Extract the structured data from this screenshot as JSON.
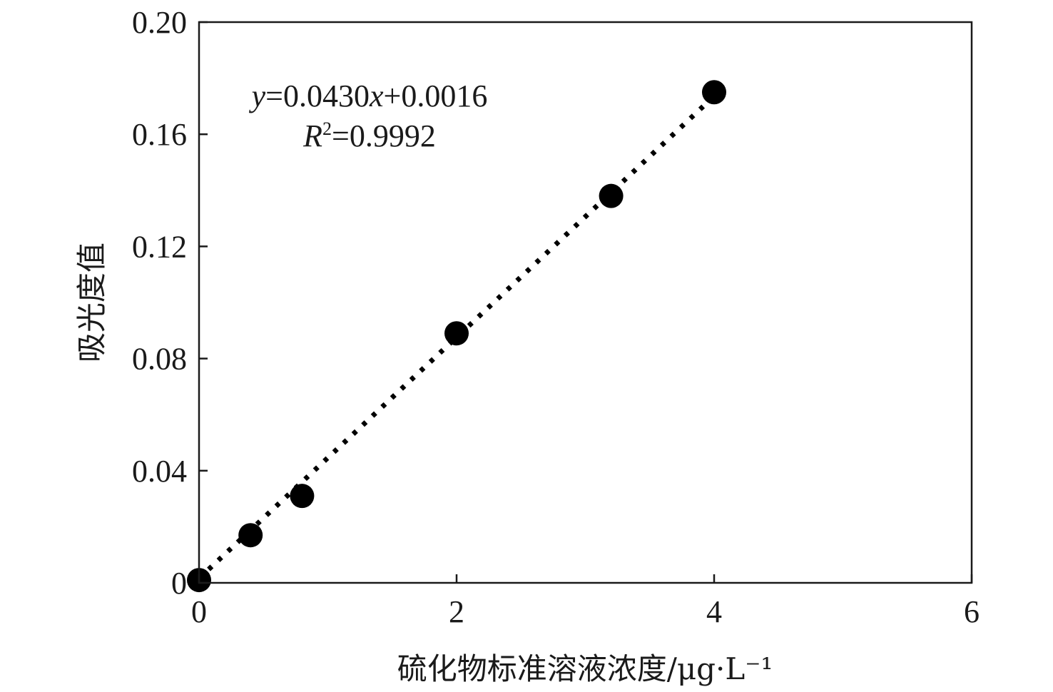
{
  "chart_data": {
    "type": "scatter",
    "title": "",
    "xlabel": "硫化物标准溶液浓度/μg·L⁻¹",
    "ylabel": "吸光度值",
    "xlim": [
      0,
      6
    ],
    "ylim": [
      0,
      0.2
    ],
    "x_ticks": [
      0,
      2,
      4,
      6
    ],
    "x_tick_labels": [
      "0",
      "2",
      "4",
      "6"
    ],
    "y_ticks": [
      0,
      0.04,
      0.08,
      0.12,
      0.16,
      0.2
    ],
    "y_tick_labels": [
      "0",
      "0.04",
      "0.08",
      "0.12",
      "0.16",
      "0.20"
    ],
    "grid": false,
    "legend": "none",
    "series": [
      {
        "x": [
          0,
          0.4,
          0.8,
          2.0,
          3.2,
          4.0
        ],
        "y": [
          0.001,
          0.017,
          0.031,
          0.089,
          0.138,
          0.175
        ]
      }
    ],
    "trendline": {
      "style": "dotted",
      "slope": 0.043,
      "intercept": 0.0016,
      "x_range": [
        0,
        4.0
      ]
    },
    "annotations": {
      "equation_y": "y",
      "equation_rest": "=0.0430",
      "equation_x": "x",
      "equation_tail": "+0.0016",
      "r2_R": "R",
      "r2_sup": "2",
      "r2_value": "=0.9992"
    },
    "colors": {
      "marker": "#000000",
      "trendline": "#000000",
      "axis": "#1a1a1a"
    }
  }
}
